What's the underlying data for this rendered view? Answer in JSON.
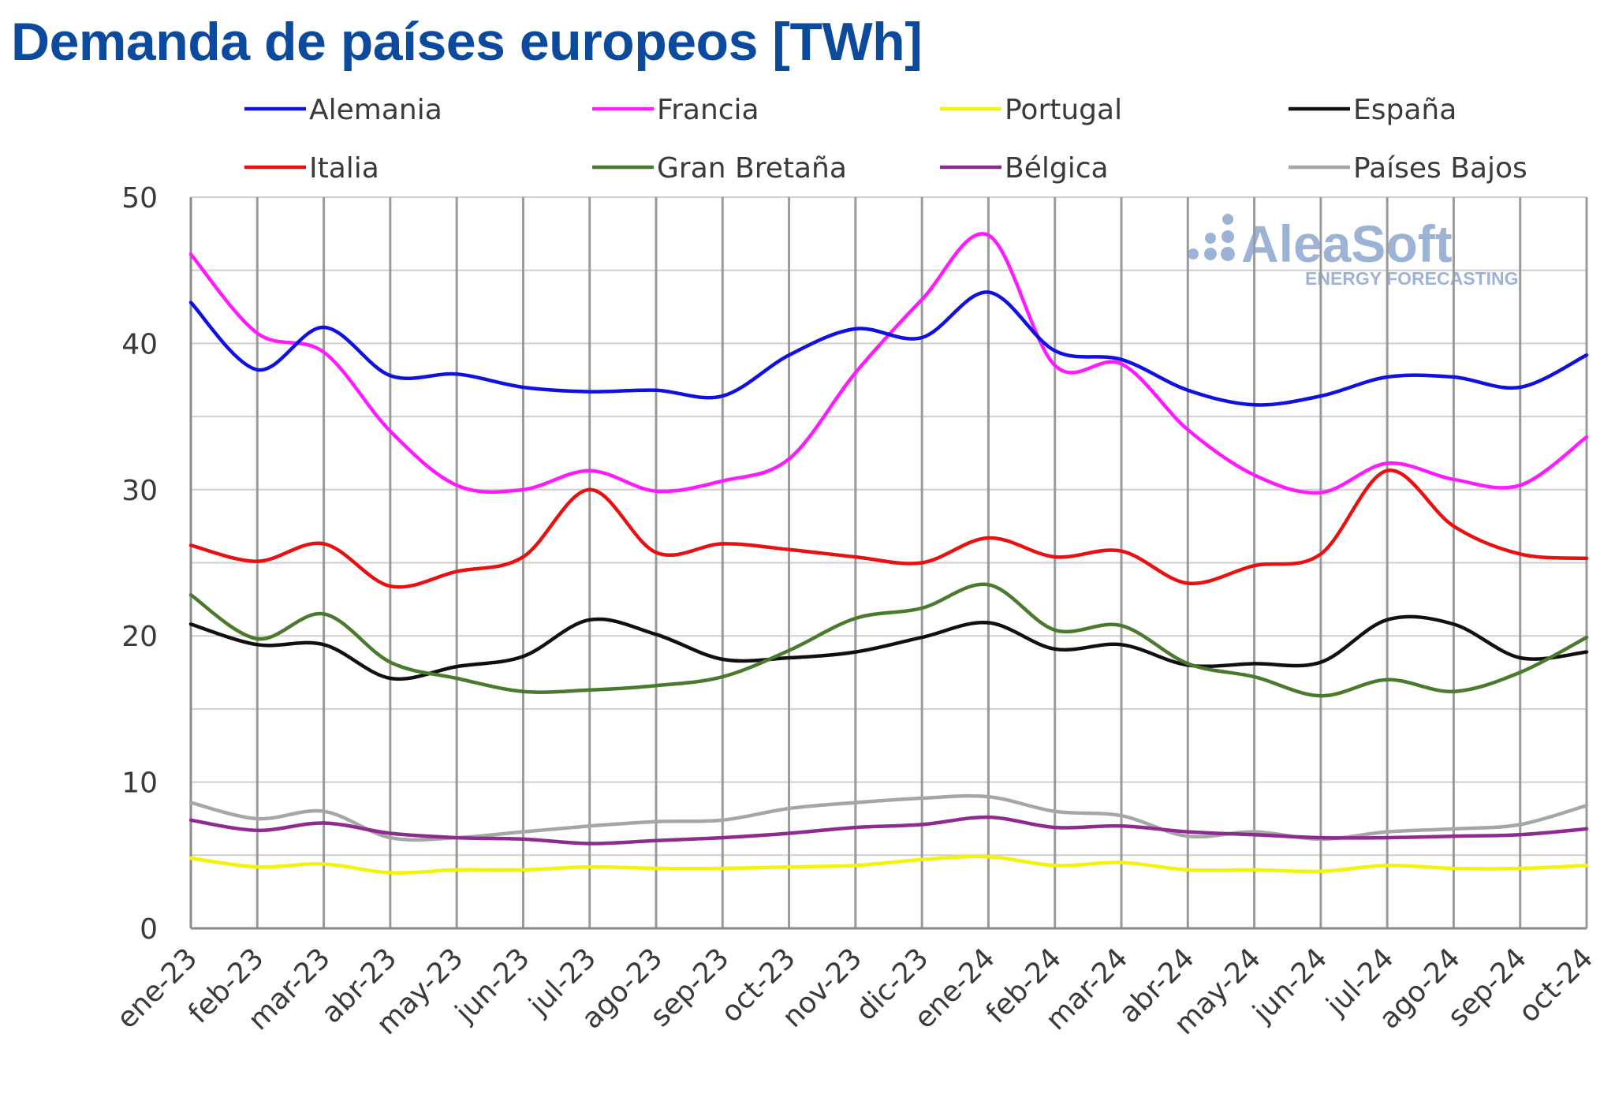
{
  "chart_data": {
    "type": "line",
    "title": "Demanda de países europeos [TWh]",
    "xlabel": "",
    "ylabel": "",
    "ylim": [
      0,
      50
    ],
    "yticks": [
      0,
      10,
      20,
      30,
      40,
      50
    ],
    "grid": true,
    "legend_position": "top",
    "categories": [
      "ene-23",
      "feb-23",
      "mar-23",
      "abr-23",
      "may-23",
      "jun-23",
      "jul-23",
      "ago-23",
      "sep-23",
      "oct-23",
      "nov-23",
      "dic-23",
      "ene-24",
      "feb-24",
      "mar-24",
      "abr-24",
      "may-24",
      "jun-24",
      "jul-24",
      "ago-24",
      "sep-24",
      "oct-24"
    ],
    "series": [
      {
        "name": "Alemania",
        "color": "#1010e0",
        "values": [
          42.8,
          38.2,
          41.1,
          37.8,
          37.9,
          37.0,
          36.7,
          36.8,
          36.4,
          39.2,
          41.0,
          40.4,
          43.5,
          39.5,
          38.9,
          36.8,
          35.8,
          36.4,
          37.7,
          37.7,
          37.0,
          39.2
        ]
      },
      {
        "name": "Francia",
        "color": "#ff1aff",
        "values": [
          46.1,
          40.7,
          39.4,
          34.0,
          30.3,
          30.0,
          31.3,
          29.9,
          30.6,
          32.1,
          38.0,
          43.0,
          47.4,
          38.5,
          38.6,
          34.1,
          31.0,
          29.8,
          31.8,
          30.7,
          30.3,
          33.6
        ]
      },
      {
        "name": "Portugal",
        "color": "#f2f20a",
        "values": [
          4.8,
          4.2,
          4.4,
          3.8,
          4.0,
          4.0,
          4.2,
          4.1,
          4.1,
          4.2,
          4.3,
          4.7,
          4.9,
          4.3,
          4.5,
          4.0,
          4.0,
          3.9,
          4.3,
          4.1,
          4.1,
          4.3
        ]
      },
      {
        "name": "España",
        "color": "#101010",
        "values": [
          20.8,
          19.4,
          19.4,
          17.1,
          17.9,
          18.6,
          21.1,
          20.1,
          18.4,
          18.5,
          18.9,
          19.9,
          20.9,
          19.1,
          19.4,
          18.0,
          18.1,
          18.2,
          21.1,
          20.8,
          18.5,
          18.9
        ]
      },
      {
        "name": "Italia",
        "color": "#e81010",
        "values": [
          26.2,
          25.1,
          26.3,
          23.4,
          24.4,
          25.4,
          30.0,
          25.7,
          26.3,
          25.9,
          25.4,
          25.0,
          26.7,
          25.4,
          25.8,
          23.6,
          24.8,
          25.6,
          31.3,
          27.5,
          25.6,
          25.3
        ]
      },
      {
        "name": "Gran Bretaña",
        "color": "#4a7a2e",
        "values": [
          22.8,
          19.8,
          21.5,
          18.2,
          17.1,
          16.2,
          16.3,
          16.6,
          17.2,
          19.0,
          21.2,
          21.9,
          23.5,
          20.4,
          20.7,
          18.1,
          17.2,
          15.9,
          17.0,
          16.2,
          17.5,
          19.9
        ]
      },
      {
        "name": "Bélgica",
        "color": "#8e2a90",
        "values": [
          7.4,
          6.7,
          7.2,
          6.5,
          6.2,
          6.1,
          5.8,
          6.0,
          6.2,
          6.5,
          6.9,
          7.1,
          7.6,
          6.9,
          7.0,
          6.6,
          6.4,
          6.2,
          6.2,
          6.3,
          6.4,
          6.8
        ]
      },
      {
        "name": "Países Bajos",
        "color": "#a6a6a6",
        "values": [
          8.6,
          7.5,
          8.0,
          6.2,
          6.2,
          6.6,
          7.0,
          7.3,
          7.4,
          8.2,
          8.6,
          8.9,
          9.0,
          8.0,
          7.7,
          6.3,
          6.6,
          6.1,
          6.6,
          6.8,
          7.1,
          8.4
        ]
      }
    ]
  },
  "watermark": {
    "name": "AleaSoft",
    "tagline": "ENERGY FORECASTING",
    "color": "#9db3d6"
  }
}
